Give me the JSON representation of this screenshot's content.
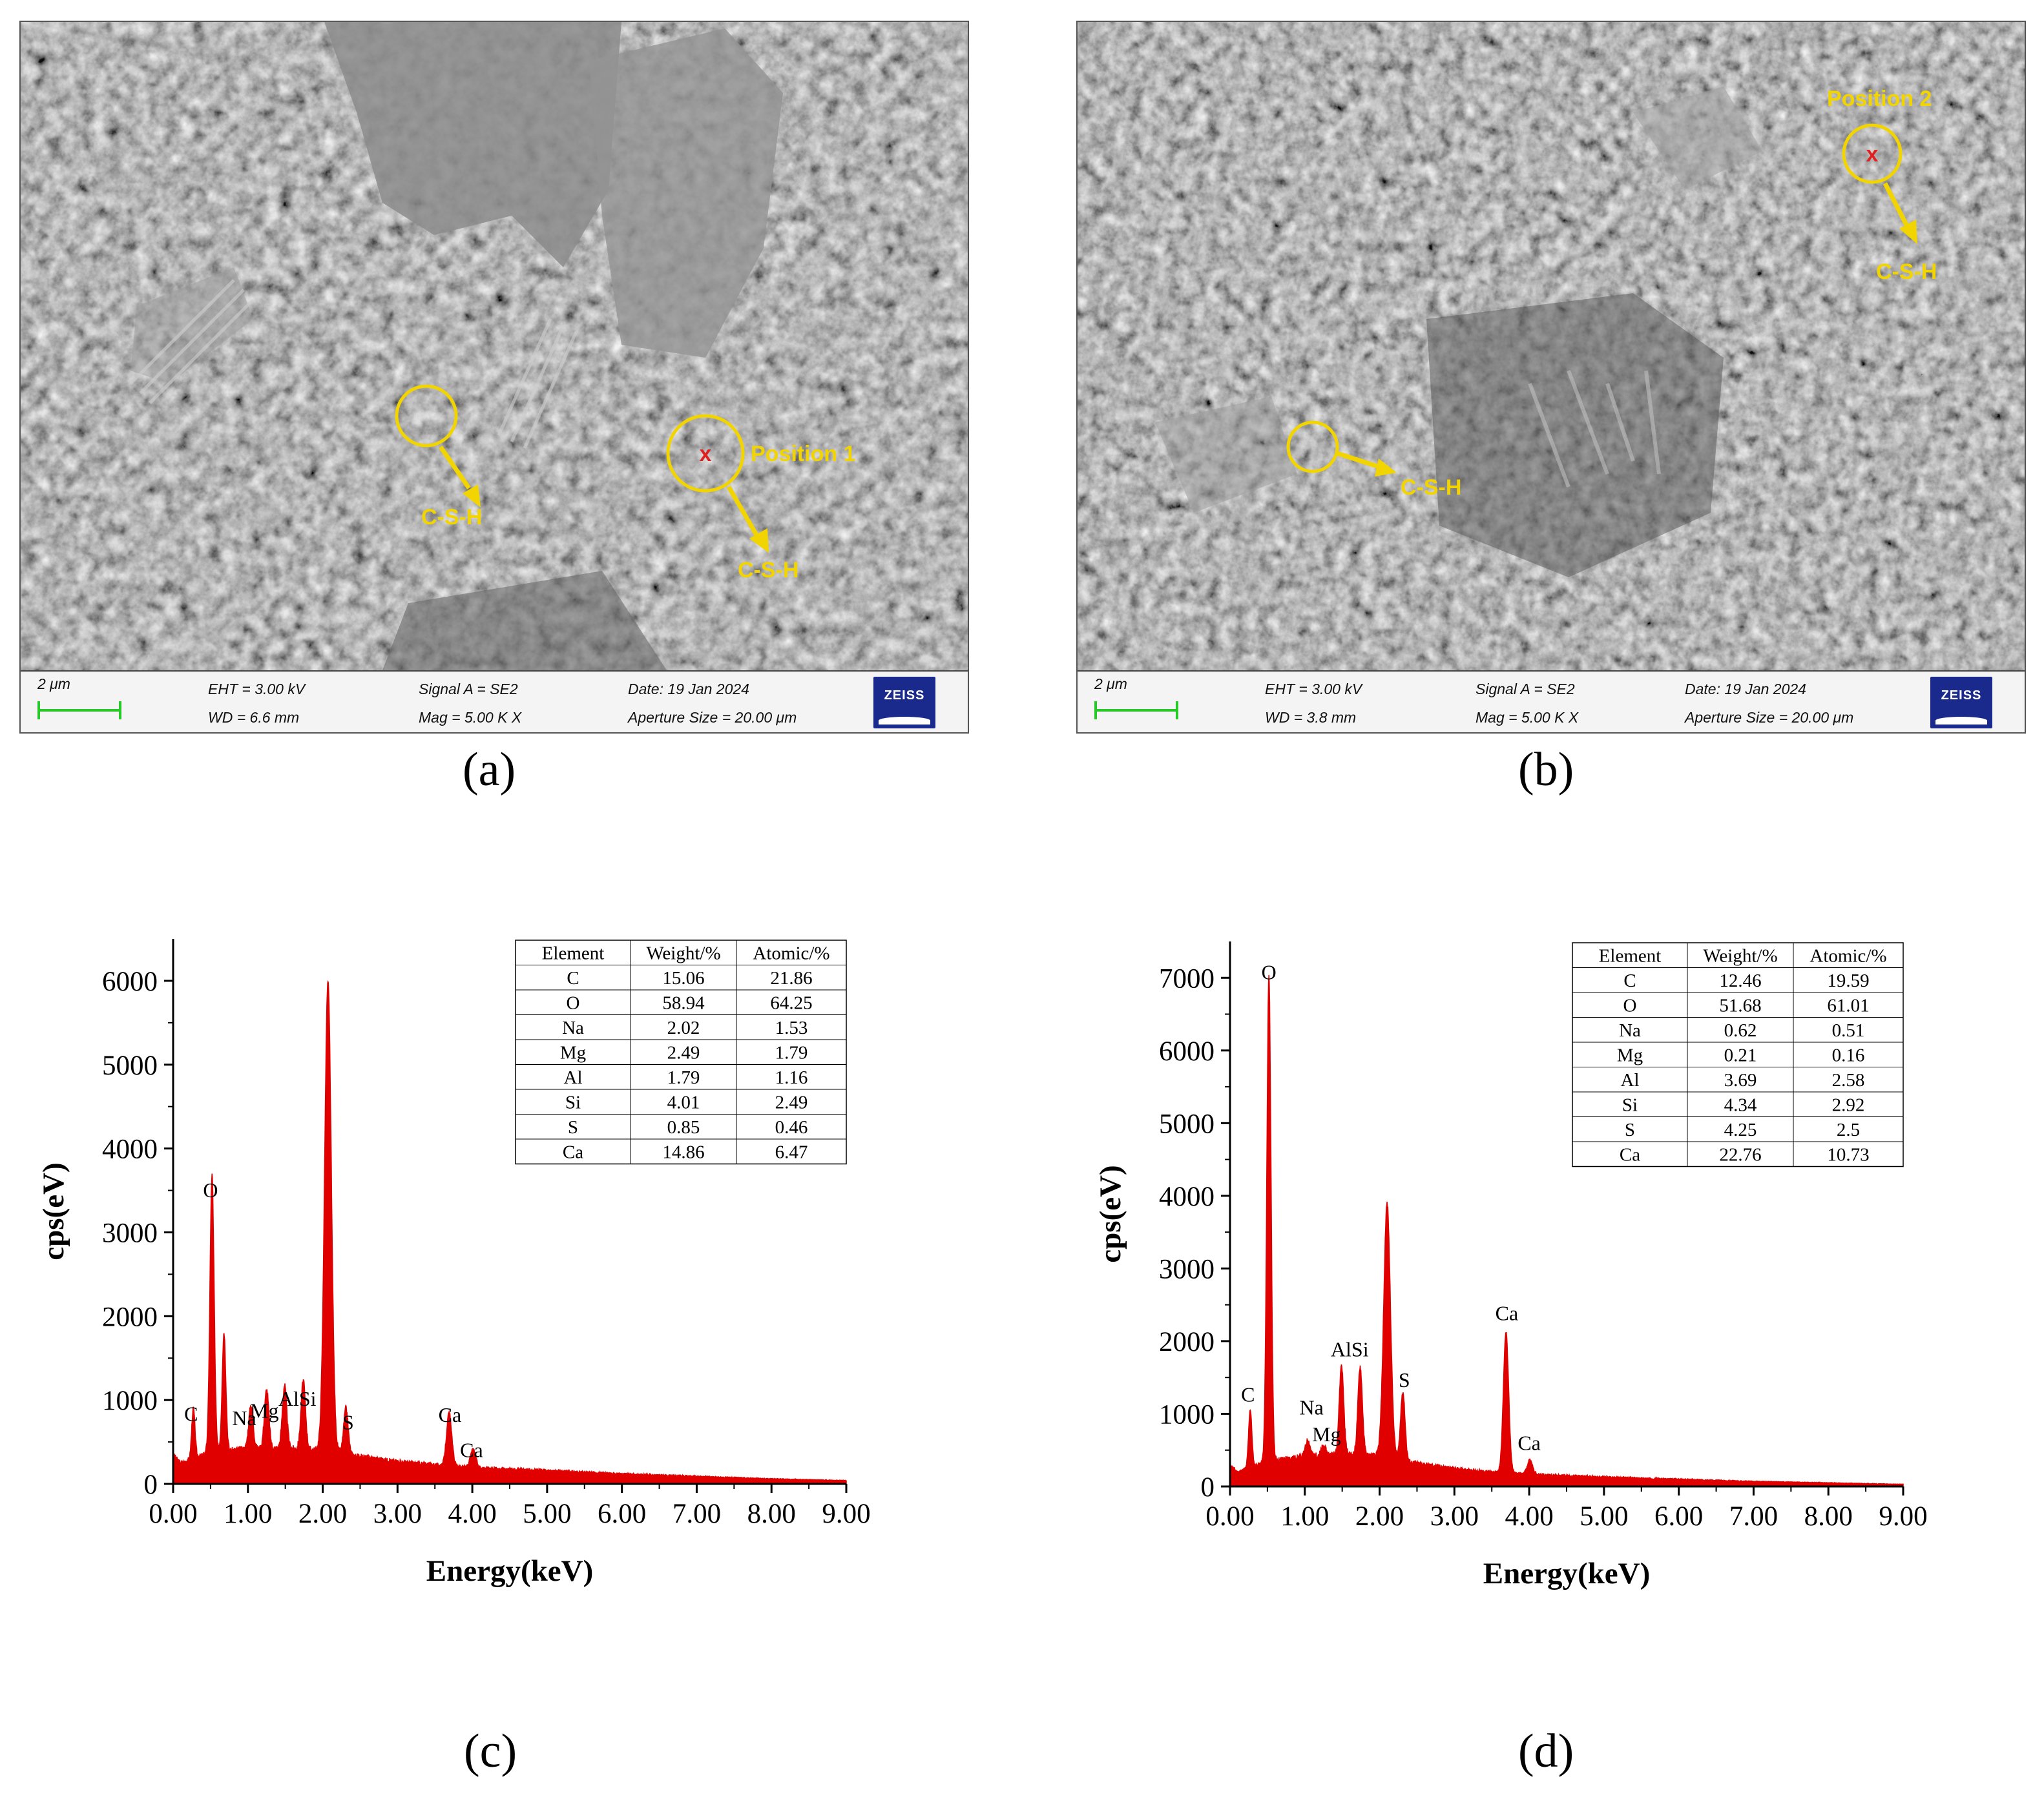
{
  "panels": {
    "a": {
      "label": "(a)",
      "annotations": {
        "csh_left": "C-S-H",
        "position": "Position 1",
        "csh_right": "C-S-H",
        "marker": "x"
      },
      "info": {
        "scale": "2 μm",
        "eht": "EHT =  3.00 kV",
        "wd": "WD =  6.6 mm",
        "signal": "Signal A = SE2",
        "mag": "Mag =     5.00 K X",
        "date": "Date: 19 Jan 2024",
        "aperture": "Aperture Size = 20.00 μm",
        "brand": "ZEISS"
      }
    },
    "b": {
      "label": "(b)",
      "annotations": {
        "position": "Position 2",
        "csh_top": "C-S-H",
        "csh_left": "C-S-H",
        "marker": "x"
      },
      "info": {
        "scale": "2 μm",
        "eht": "EHT =  3.00 kV",
        "wd": "WD =  3.8 mm",
        "signal": "Signal A = SE2",
        "mag": "Mag =     5.00 K X",
        "date": "Date: 19 Jan 2024",
        "aperture": "Aperture Size = 20.00 μm",
        "brand": "ZEISS"
      }
    },
    "c": {
      "label": "(c)"
    },
    "d": {
      "label": "(d)"
    }
  },
  "colors": {
    "spectrum": "#e00000",
    "annotation": "#f2d400",
    "marker": "#e02020",
    "scalebar": "#28c828"
  },
  "chart_data": [
    {
      "type": "area",
      "panel": "c",
      "xlabel": "Energy(keV)",
      "ylabel": "cps(eV)",
      "xlim": [
        0,
        9
      ],
      "ylim": [
        0,
        6500
      ],
      "xticks": [
        "0.00",
        "1.00",
        "2.00",
        "3.00",
        "4.00",
        "5.00",
        "6.00",
        "7.00",
        "8.00",
        "9.00"
      ],
      "yticks": [
        "0",
        "1000",
        "2000",
        "3000",
        "4000",
        "5000",
        "6000"
      ],
      "background": [
        [
          0,
          350
        ],
        [
          0.1,
          250
        ],
        [
          0.5,
          380
        ],
        [
          1.0,
          420
        ],
        [
          1.5,
          430
        ],
        [
          2.0,
          400
        ],
        [
          2.5,
          330
        ],
        [
          3.0,
          270
        ],
        [
          3.5,
          230
        ],
        [
          4.0,
          200
        ],
        [
          5.0,
          160
        ],
        [
          6.0,
          120
        ],
        [
          7.0,
          90
        ],
        [
          8.0,
          60
        ],
        [
          9.0,
          40
        ]
      ],
      "peaks": [
        {
          "x": 0.27,
          "y": 600,
          "w": 0.022
        },
        {
          "x": 0.52,
          "y": 3300,
          "w": 0.028
        },
        {
          "x": 0.68,
          "y": 1420,
          "w": 0.025
        },
        {
          "x": 1.04,
          "y": 520,
          "w": 0.03
        },
        {
          "x": 1.25,
          "y": 700,
          "w": 0.03
        },
        {
          "x": 1.49,
          "y": 750,
          "w": 0.03
        },
        {
          "x": 1.74,
          "y": 820,
          "w": 0.03
        },
        {
          "x": 2.07,
          "y": 5600,
          "w": 0.045
        },
        {
          "x": 2.31,
          "y": 550,
          "w": 0.03
        },
        {
          "x": 3.69,
          "y": 630,
          "w": 0.035
        },
        {
          "x": 4.01,
          "y": 210,
          "w": 0.035
        }
      ],
      "peak_labels": [
        {
          "text": "C",
          "x": 0.24,
          "y": 750
        },
        {
          "text": "O",
          "x": 0.5,
          "y": 3420
        },
        {
          "text": "Na",
          "x": 0.95,
          "y": 700
        },
        {
          "text": "Mg",
          "x": 1.22,
          "y": 790
        },
        {
          "text": "AlSi",
          "x": 1.66,
          "y": 930
        },
        {
          "text": "S",
          "x": 2.34,
          "y": 650
        },
        {
          "text": "Ca",
          "x": 3.7,
          "y": 740
        },
        {
          "text": "Ca",
          "x": 3.99,
          "y": 320
        }
      ],
      "table": {
        "columns": [
          "Element",
          "Weight/%",
          "Atomic/%"
        ],
        "rows": [
          [
            "C",
            "15.06",
            "21.86"
          ],
          [
            "O",
            "58.94",
            "64.25"
          ],
          [
            "Na",
            "2.02",
            "1.53"
          ],
          [
            "Mg",
            "2.49",
            "1.79"
          ],
          [
            "Al",
            "1.79",
            "1.16"
          ],
          [
            "Si",
            "4.01",
            "2.49"
          ],
          [
            "S",
            "0.85",
            "0.46"
          ],
          [
            "Ca",
            "14.86",
            "6.47"
          ]
        ]
      }
    },
    {
      "type": "area",
      "panel": "d",
      "xlabel": "Energy(keV)",
      "ylabel": "cps(eV)",
      "xlim": [
        0,
        9
      ],
      "ylim": [
        0,
        7500
      ],
      "xticks": [
        "0.00",
        "1.00",
        "2.00",
        "3.00",
        "4.00",
        "5.00",
        "6.00",
        "7.00",
        "8.00",
        "9.00"
      ],
      "yticks": [
        "0",
        "1000",
        "2000",
        "3000",
        "4000",
        "5000",
        "6000",
        "7000"
      ],
      "background": [
        [
          0,
          300
        ],
        [
          0.1,
          200
        ],
        [
          0.5,
          350
        ],
        [
          1.0,
          420
        ],
        [
          1.5,
          450
        ],
        [
          2.0,
          420
        ],
        [
          2.5,
          320
        ],
        [
          3.0,
          250
        ],
        [
          3.5,
          200
        ],
        [
          4.0,
          170
        ],
        [
          5.0,
          130
        ],
        [
          6.0,
          100
        ],
        [
          7.0,
          70
        ],
        [
          8.0,
          50
        ],
        [
          9.0,
          30
        ]
      ],
      "peaks": [
        {
          "x": 0.27,
          "y": 800,
          "w": 0.022
        },
        {
          "x": 0.52,
          "y": 6700,
          "w": 0.028
        },
        {
          "x": 1.04,
          "y": 220,
          "w": 0.03
        },
        {
          "x": 1.25,
          "y": 120,
          "w": 0.03
        },
        {
          "x": 1.49,
          "y": 1230,
          "w": 0.03
        },
        {
          "x": 1.74,
          "y": 1220,
          "w": 0.03
        },
        {
          "x": 2.1,
          "y": 3500,
          "w": 0.045
        },
        {
          "x": 2.31,
          "y": 950,
          "w": 0.03
        },
        {
          "x": 3.69,
          "y": 1940,
          "w": 0.035
        },
        {
          "x": 4.01,
          "y": 200,
          "w": 0.035
        }
      ],
      "peak_labels": [
        {
          "text": "C",
          "x": 0.24,
          "y": 1170
        },
        {
          "text": "O",
          "x": 0.52,
          "y": 6980
        },
        {
          "text": "Na",
          "x": 1.09,
          "y": 990
        },
        {
          "text": "Mg",
          "x": 1.29,
          "y": 620
        },
        {
          "text": "AlSi",
          "x": 1.6,
          "y": 1790
        },
        {
          "text": "S",
          "x": 2.33,
          "y": 1370
        },
        {
          "text": "Ca",
          "x": 3.7,
          "y": 2290
        },
        {
          "text": "Ca",
          "x": 4.0,
          "y": 500
        }
      ],
      "table": {
        "columns": [
          "Element",
          "Weight/%",
          "Atomic/%"
        ],
        "rows": [
          [
            "C",
            "12.46",
            "19.59"
          ],
          [
            "O",
            "51.68",
            "61.01"
          ],
          [
            "Na",
            "0.62",
            "0.51"
          ],
          [
            "Mg",
            "0.21",
            "0.16"
          ],
          [
            "Al",
            "3.69",
            "2.58"
          ],
          [
            "Si",
            "4.34",
            "2.92"
          ],
          [
            "S",
            "4.25",
            "2.5"
          ],
          [
            "Ca",
            "22.76",
            "10.73"
          ]
        ]
      }
    }
  ]
}
